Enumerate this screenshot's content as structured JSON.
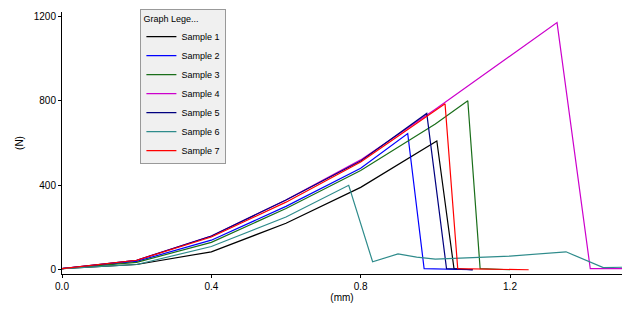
{
  "chart_data": {
    "type": "line",
    "x_label": "(mm)",
    "y_label": "(N)",
    "legend_title": "Graph Lege...",
    "legend": "top-left",
    "grid": false,
    "xlim": [
      0,
      1.5
    ],
    "ylim": [
      -20,
      1220
    ],
    "xticks": [
      {
        "value": 0,
        "label": "0.0"
      },
      0.4,
      0.8,
      1.2
    ],
    "yticks": [
      0,
      400,
      800,
      1200
    ],
    "series": [
      {
        "name": "Sample 1",
        "color": "#000000",
        "x": [
          0,
          0.2,
          0.4,
          0.6,
          0.8,
          1.004,
          1.05,
          1.1
        ],
        "values": [
          5,
          25,
          85,
          220,
          390,
          610,
          5,
          0
        ]
      },
      {
        "name": "Sample 2",
        "color": "#0000ff",
        "x": [
          0,
          0.2,
          0.4,
          0.6,
          0.8,
          0.926,
          0.97,
          1.1
        ],
        "values": [
          5,
          40,
          140,
          300,
          480,
          645,
          5,
          0
        ]
      },
      {
        "name": "Sample 3",
        "color": "#1a6e1a",
        "x": [
          0,
          0.2,
          0.4,
          0.6,
          0.8,
          1.0,
          1.087,
          1.12,
          1.2
        ],
        "values": [
          5,
          35,
          130,
          290,
          470,
          690,
          800,
          5,
          0
        ]
      },
      {
        "name": "Sample 4",
        "color": "#cc00cc",
        "x": [
          0,
          0.2,
          0.4,
          0.6,
          0.8,
          1.0,
          1.326,
          1.415,
          1.5
        ],
        "values": [
          5,
          45,
          160,
          330,
          520,
          760,
          1170,
          5,
          5
        ]
      },
      {
        "name": "Sample 5",
        "color": "#00007f",
        "x": [
          0,
          0.2,
          0.4,
          0.6,
          0.8,
          0.977,
          1.03,
          1.1
        ],
        "values": [
          5,
          45,
          160,
          330,
          515,
          740,
          5,
          0
        ]
      },
      {
        "name": "Sample 6",
        "color": "#2e8b8b",
        "x": [
          0,
          0.2,
          0.4,
          0.6,
          0.768,
          0.832,
          0.9,
          0.95,
          1.0,
          1.2,
          1.35,
          1.45,
          1.5
        ],
        "values": [
          5,
          25,
          110,
          250,
          400,
          38,
          75,
          60,
          50,
          65,
          85,
          10,
          12
        ]
      },
      {
        "name": "Sample 7",
        "color": "#ff0000",
        "x": [
          0,
          0.2,
          0.4,
          0.6,
          0.8,
          1.026,
          1.06,
          1.25
        ],
        "values": [
          5,
          45,
          155,
          320,
          510,
          786,
          5,
          0
        ]
      }
    ]
  }
}
